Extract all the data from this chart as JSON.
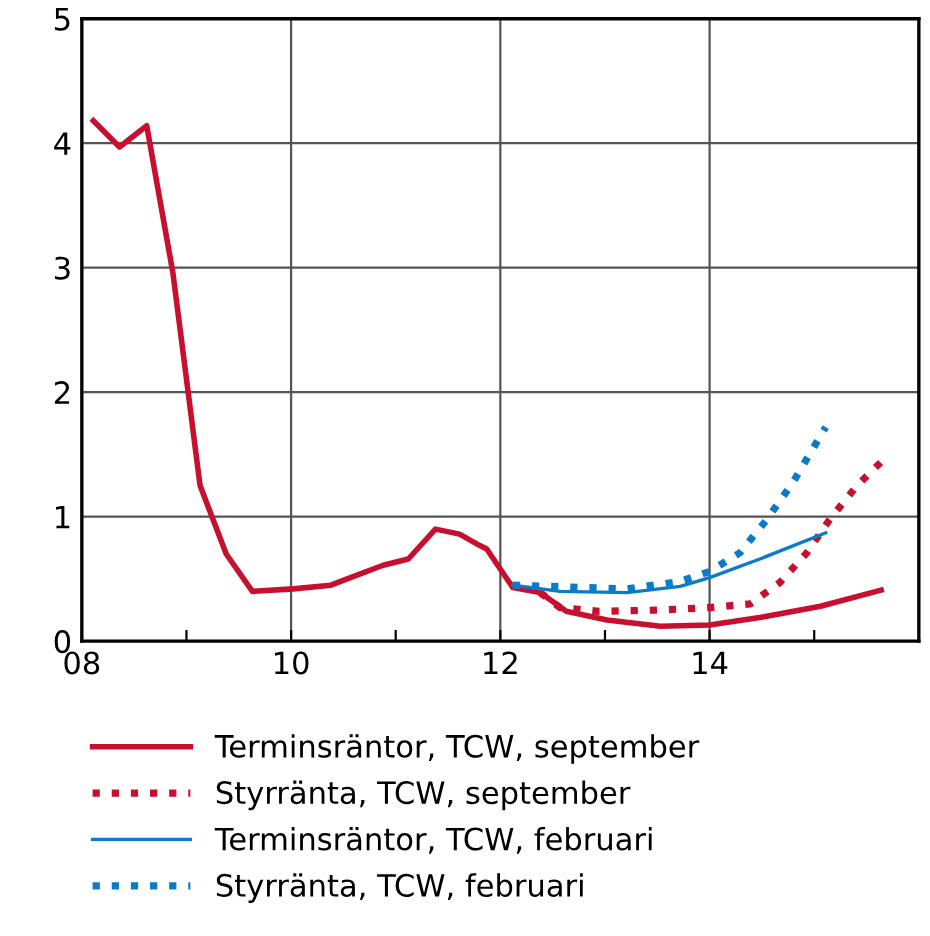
{
  "chart_data": {
    "type": "line",
    "xlim": [
      8,
      16
    ],
    "ylim": [
      0,
      5
    ],
    "xticks": [
      {
        "value": 8,
        "label": "08"
      },
      {
        "value": 9,
        "label": null
      },
      {
        "value": 10,
        "label": "10"
      },
      {
        "value": 11,
        "label": null
      },
      {
        "value": 12,
        "label": "12"
      },
      {
        "value": 13,
        "label": null
      },
      {
        "value": 14,
        "label": "14"
      },
      {
        "value": 15,
        "label": null
      }
    ],
    "yticks": [
      0,
      1,
      2,
      3,
      4,
      5
    ],
    "grid": true,
    "legend": "bottom",
    "marker": "none",
    "series": [
      {
        "name": "Terminsräntor, TCW, september",
        "color": "#c8102e",
        "line_style": "solid",
        "x": [
          8.11,
          8.36,
          8.62,
          8.87,
          9.13,
          9.38,
          9.63,
          10.02,
          10.38,
          10.63,
          10.88,
          11.12,
          11.38,
          11.61,
          11.8,
          11.87,
          12.12,
          12.38,
          12.63,
          13.02,
          13.53,
          14.0,
          14.48,
          15.06,
          15.64
        ],
        "values": [
          4.18,
          3.97,
          4.14,
          2.96,
          1.25,
          0.7,
          0.4,
          0.42,
          0.45,
          0.53,
          0.61,
          0.66,
          0.9,
          0.86,
          0.77,
          0.74,
          0.43,
          0.39,
          0.24,
          0.17,
          0.12,
          0.13,
          0.19,
          0.28,
          0.41
        ]
      },
      {
        "name": "Styrränta, TCW, september",
        "color": "#c8102e",
        "line_style": "dotted",
        "x": [
          12.38,
          12.57,
          12.94,
          13.53,
          14.0,
          14.39,
          14.67,
          14.93,
          15.15,
          15.41,
          15.64
        ],
        "values": [
          0.39,
          0.27,
          0.24,
          0.25,
          0.27,
          0.3,
          0.47,
          0.71,
          0.98,
          1.25,
          1.44
        ]
      },
      {
        "name": "Terminsräntor, TCW, februari",
        "color": "#0a7bc8",
        "line_style": "solid",
        "x": [
          12.12,
          12.57,
          13.21,
          13.72,
          14.0,
          14.48,
          15.11
        ],
        "values": [
          0.45,
          0.4,
          0.39,
          0.44,
          0.51,
          0.66,
          0.87
        ]
      },
      {
        "name": "Styrränta, TCW, februari",
        "color": "#0a7bc8",
        "line_style": "dotted",
        "x": [
          12.12,
          13.21,
          13.72,
          14.0,
          14.29,
          14.55,
          14.8,
          15.11
        ],
        "values": [
          0.45,
          0.42,
          0.48,
          0.56,
          0.71,
          0.98,
          1.28,
          1.72
        ]
      }
    ]
  }
}
